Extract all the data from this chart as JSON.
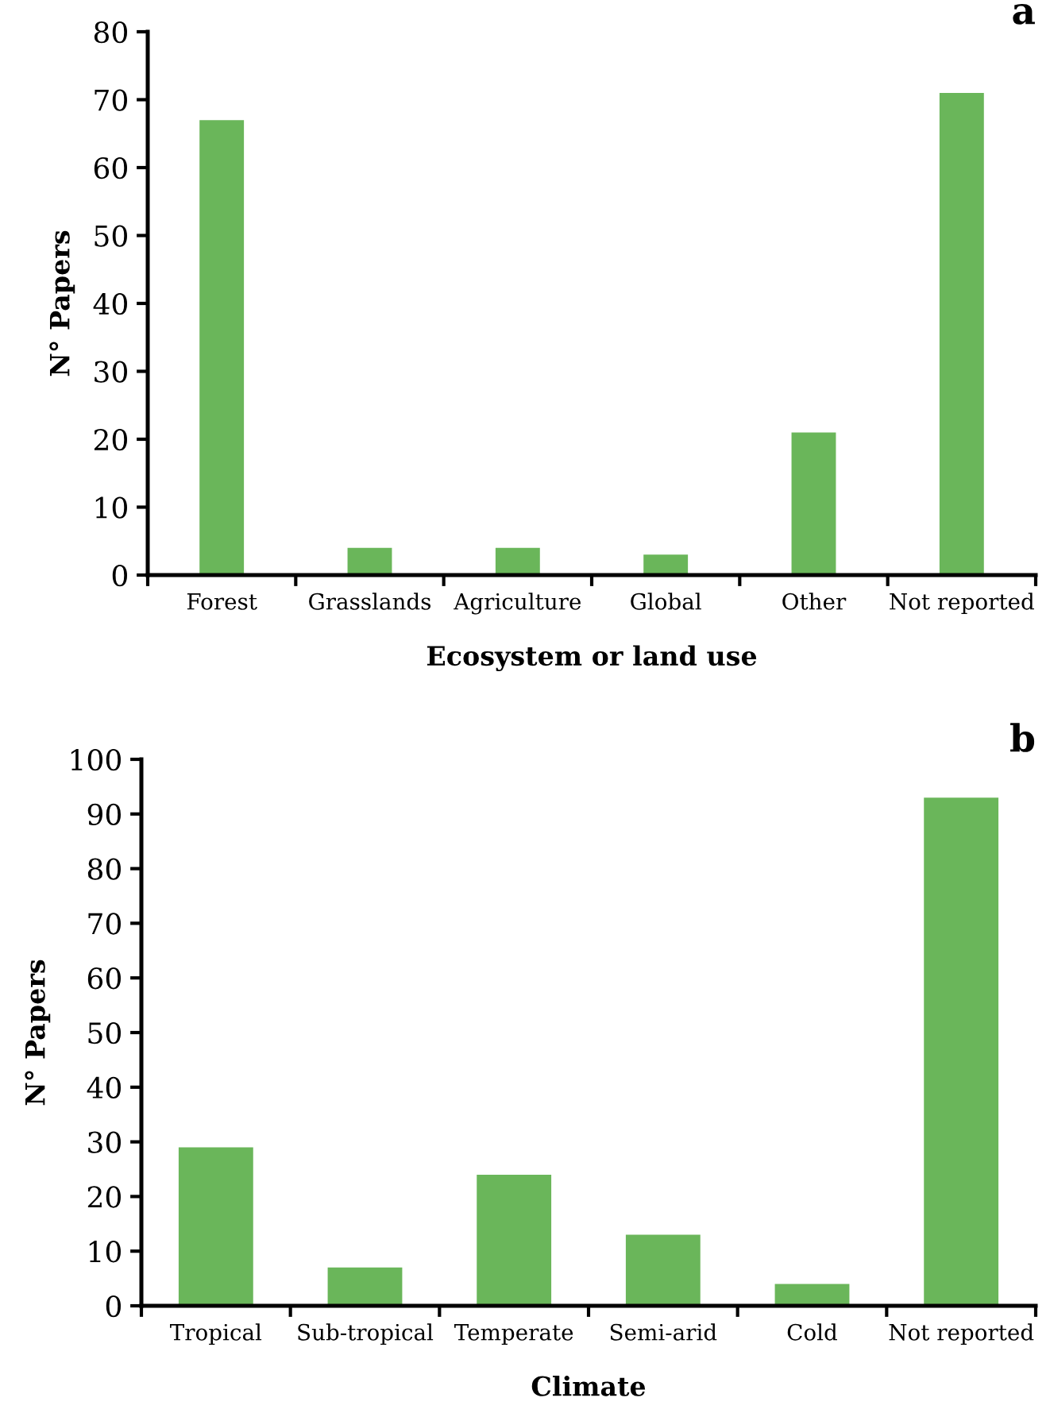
{
  "chart_data": [
    {
      "type": "bar",
      "title": "a",
      "xlabel": "Ecosystem or land use",
      "ylabel": "N° Papers",
      "categories": [
        "Forest",
        "Grasslands",
        "Agriculture",
        "Global",
        "Other",
        "Not reported"
      ],
      "values": [
        67,
        4,
        4,
        3,
        21,
        71
      ],
      "color": "#6ab65a",
      "ylim": [
        0,
        80
      ],
      "yticks": [
        0,
        10,
        20,
        30,
        40,
        50,
        60,
        70,
        80
      ],
      "grid": false
    },
    {
      "type": "bar",
      "title": "b",
      "xlabel": "Climate",
      "ylabel": "N° Papers",
      "categories": [
        "Tropical",
        "Sub-tropical",
        "Temperate",
        "Semi-arid",
        "Cold",
        "Not reported"
      ],
      "values": [
        29,
        7,
        24,
        13,
        4,
        93
      ],
      "color": "#6ab65a",
      "ylim": [
        0,
        100
      ],
      "yticks": [
        0,
        10,
        20,
        30,
        40,
        50,
        60,
        70,
        80,
        90,
        100
      ],
      "grid": false
    }
  ]
}
